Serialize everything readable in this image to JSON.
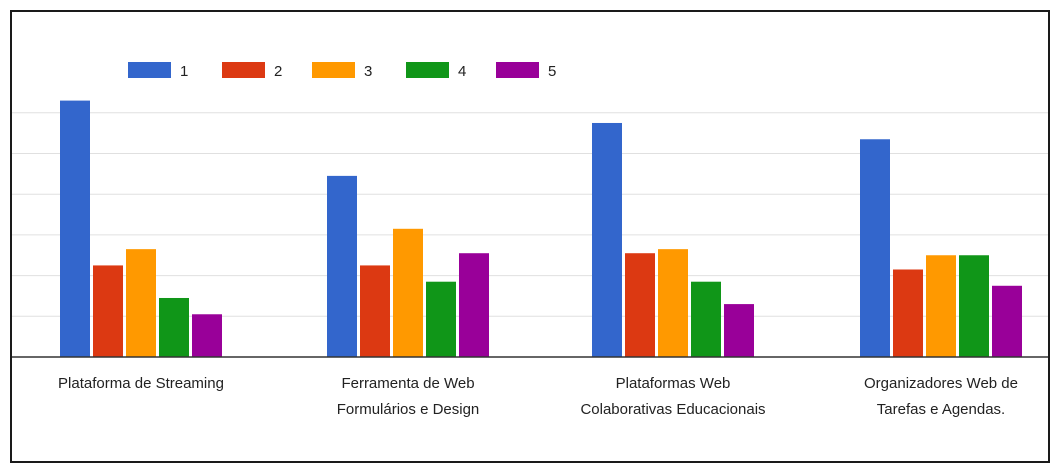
{
  "chart_data": {
    "type": "bar",
    "categories": [
      [
        "Plataforma de Streaming"
      ],
      [
        "Ferramenta de Web",
        "Formulários e Design"
      ],
      [
        "Plataformas Web",
        "Colaborativas Educacionais"
      ],
      [
        "Organizadores Web de",
        "Tarefas e Agendas."
      ]
    ],
    "series": [
      {
        "name": "1",
        "color": "#3366cc",
        "values": [
          63,
          44.5,
          57.5,
          53.5
        ]
      },
      {
        "name": "2",
        "color": "#dc3912",
        "values": [
          22.5,
          22.5,
          25.5,
          21.5
        ]
      },
      {
        "name": "3",
        "color": "#ff9900",
        "values": [
          26.5,
          31.5,
          26.5,
          25
        ]
      },
      {
        "name": "4",
        "color": "#109618",
        "values": [
          14.5,
          18.5,
          18.5,
          25
        ]
      },
      {
        "name": "5",
        "color": "#990099",
        "values": [
          10.5,
          25.5,
          13,
          17.5
        ]
      }
    ],
    "ylim": [
      0,
      70
    ],
    "gridlines": [
      10,
      20,
      30,
      40,
      50,
      60
    ],
    "grid": true,
    "legend_position": "top",
    "xlabel": "",
    "ylabel": ""
  }
}
